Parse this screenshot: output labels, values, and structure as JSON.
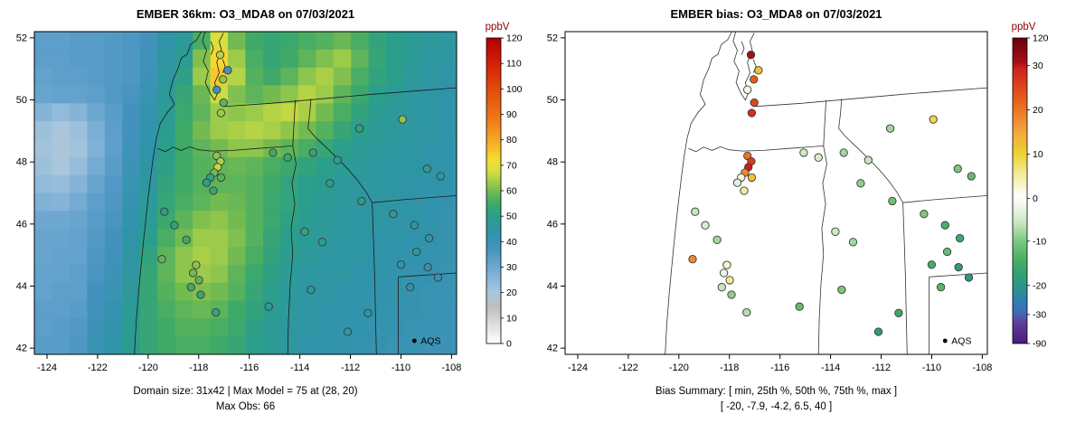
{
  "left_panel": {
    "title": "EMBER 36km: O3_MDA8 on 07/03/2021",
    "footer_line1": "Domain size: 31x42 | Max Model = 75 at (28, 20)",
    "footer_line2": "Max Obs: 66",
    "aqs_label": "AQS",
    "colorbar_title": "ppbV"
  },
  "right_panel": {
    "title": "EMBER bias: O3_MDA8 on 07/03/2021",
    "footer_line1": "Bias Summary: [ min, 25th %, 50th %, 75th %, max ]",
    "footer_line2": "[ -20, -7.9, -4.2, 6.5, 40 ]",
    "aqs_label": "AQS",
    "colorbar_title": "ppbV"
  },
  "axes": {
    "x_ticks": [
      -124,
      -122,
      -120,
      -118,
      -116,
      -114,
      -112,
      -110,
      -108
    ],
    "y_ticks": [
      42,
      44,
      46,
      48,
      50,
      52
    ]
  },
  "colors": {
    "colorbar_title": "#8b0000",
    "point_stroke": "#3a3a3a",
    "border_line": "#1a1a1a"
  },
  "chart_data": [
    {
      "type": "heatmap",
      "title": "EMBER 36km: O3_MDA8 on 07/03/2021",
      "units": "ppbV",
      "domain_size": "31x42",
      "max_model": 75,
      "max_model_at": "(28, 20)",
      "max_obs": 66,
      "colorbar_range": [
        0,
        120
      ],
      "colorbar_ticks": [
        0,
        10,
        20,
        30,
        40,
        50,
        60,
        70,
        80,
        90,
        100,
        110,
        120
      ],
      "colormap": [
        [
          0,
          "#ffffff"
        ],
        [
          8,
          "#dcdcdc"
        ],
        [
          14,
          "#bdbdbd"
        ],
        [
          20,
          "#a9c6dd"
        ],
        [
          26,
          "#86b4d8"
        ],
        [
          32,
          "#62a2cc"
        ],
        [
          38,
          "#4292bd"
        ],
        [
          44,
          "#2f94a8"
        ],
        [
          50,
          "#2b9e8c"
        ],
        [
          55,
          "#3faa67"
        ],
        [
          60,
          "#73bb51"
        ],
        [
          64,
          "#a9cf48"
        ],
        [
          68,
          "#d8df3e"
        ],
        [
          72,
          "#f4df30"
        ],
        [
          76,
          "#f6c02a"
        ],
        [
          82,
          "#f49b22"
        ],
        [
          90,
          "#ec7115"
        ],
        [
          100,
          "#e24b0d"
        ],
        [
          110,
          "#d51f06"
        ],
        [
          120,
          "#b00000"
        ]
      ],
      "grid_rows": 18,
      "grid_cols": 24,
      "values": [
        [
          33,
          33,
          34,
          34,
          35,
          36,
          38,
          44,
          47,
          56,
          68,
          60,
          55,
          53,
          54,
          56,
          57,
          59,
          56,
          52,
          50,
          48,
          47,
          46
        ],
        [
          33,
          33,
          34,
          34,
          35,
          36,
          39,
          45,
          49,
          61,
          73,
          63,
          56,
          53,
          55,
          58,
          61,
          63,
          58,
          53,
          50,
          48,
          46,
          45
        ],
        [
          32,
          33,
          33,
          34,
          35,
          36,
          40,
          46,
          51,
          63,
          75,
          65,
          57,
          55,
          58,
          62,
          64,
          61,
          56,
          52,
          50,
          47,
          45,
          44
        ],
        [
          31,
          32,
          32,
          33,
          35,
          37,
          41,
          47,
          53,
          59,
          67,
          61,
          58,
          60,
          62,
          65,
          63,
          58,
          54,
          50,
          48,
          46,
          45,
          44
        ],
        [
          26,
          24,
          26,
          30,
          34,
          38,
          42,
          48,
          54,
          58,
          63,
          62,
          63,
          65,
          66,
          64,
          60,
          56,
          52,
          49,
          47,
          46,
          45,
          44
        ],
        [
          22,
          20,
          22,
          28,
          33,
          38,
          43,
          49,
          55,
          60,
          63,
          64,
          65,
          64,
          62,
          60,
          57,
          53,
          50,
          48,
          47,
          46,
          45,
          44
        ],
        [
          21,
          19,
          21,
          27,
          33,
          39,
          44,
          50,
          55,
          58,
          60,
          62,
          62,
          60,
          58,
          56,
          53,
          50,
          48,
          47,
          46,
          45,
          44,
          43
        ],
        [
          22,
          20,
          23,
          29,
          34,
          40,
          45,
          51,
          55,
          57,
          58,
          59,
          58,
          56,
          54,
          52,
          50,
          48,
          47,
          46,
          45,
          45,
          44,
          43
        ],
        [
          24,
          23,
          26,
          31,
          35,
          41,
          46,
          52,
          55,
          57,
          58,
          58,
          57,
          55,
          52,
          50,
          49,
          47,
          46,
          46,
          45,
          44,
          44,
          43
        ],
        [
          27,
          26,
          29,
          33,
          36,
          42,
          47,
          53,
          56,
          58,
          60,
          59,
          57,
          54,
          52,
          50,
          48,
          47,
          46,
          45,
          45,
          44,
          43,
          43
        ],
        [
          30,
          30,
          31,
          34,
          37,
          43,
          48,
          54,
          58,
          61,
          62,
          60,
          57,
          54,
          51,
          49,
          47,
          46,
          45,
          45,
          44,
          44,
          43,
          42
        ],
        [
          31,
          31,
          32,
          35,
          38,
          44,
          50,
          56,
          60,
          63,
          63,
          61,
          57,
          53,
          50,
          48,
          47,
          46,
          45,
          44,
          44,
          43,
          43,
          42
        ],
        [
          31,
          32,
          32,
          36,
          39,
          45,
          52,
          58,
          62,
          64,
          63,
          60,
          56,
          52,
          49,
          47,
          46,
          45,
          45,
          44,
          43,
          43,
          42,
          42
        ],
        [
          32,
          32,
          33,
          37,
          40,
          46,
          53,
          58,
          62,
          63,
          62,
          58,
          54,
          51,
          48,
          46,
          45,
          45,
          44,
          44,
          43,
          42,
          42,
          41
        ],
        [
          32,
          33,
          33,
          38,
          41,
          47,
          53,
          57,
          60,
          61,
          60,
          57,
          53,
          50,
          47,
          46,
          45,
          44,
          44,
          43,
          43,
          42,
          41,
          41
        ],
        [
          33,
          33,
          34,
          39,
          42,
          48,
          53,
          56,
          58,
          59,
          58,
          55,
          52,
          49,
          47,
          45,
          44,
          44,
          43,
          43,
          42,
          42,
          41,
          40
        ],
        [
          33,
          34,
          35,
          40,
          43,
          49,
          53,
          55,
          57,
          57,
          56,
          54,
          51,
          48,
          46,
          45,
          44,
          43,
          43,
          42,
          42,
          41,
          41,
          40
        ],
        [
          34,
          34,
          36,
          41,
          44,
          49,
          53,
          55,
          56,
          56,
          55,
          53,
          50,
          48,
          46,
          44,
          43,
          43,
          42,
          42,
          41,
          41,
          40,
          40
        ]
      ]
    },
    {
      "type": "scatter",
      "title": "EMBER bias: O3_MDA8 on 07/03/2021",
      "units": "ppbV",
      "bias_summary": {
        "min": -20,
        "p25": -7.9,
        "p50": -4.2,
        "p75": 6.5,
        "max": 40
      },
      "colorbar_ticks": [
        {
          "v": 120,
          "f": 0.0
        },
        {
          "v": 30,
          "f": 0.09
        },
        {
          "v": 20,
          "f": 0.235
        },
        {
          "v": 10,
          "f": 0.38
        },
        {
          "v": 0,
          "f": 0.525
        },
        {
          "v": -10,
          "f": 0.665
        },
        {
          "v": -20,
          "f": 0.81
        },
        {
          "v": -30,
          "f": 0.905
        },
        {
          "v": -90,
          "f": 1.0
        }
      ],
      "colormap": [
        [
          -90,
          "#4a1a7a"
        ],
        [
          -45,
          "#5f3f9e"
        ],
        [
          -32,
          "#4f5fae"
        ],
        [
          -26,
          "#2f7cb8"
        ],
        [
          -22,
          "#2a8f96"
        ],
        [
          -18,
          "#2f9e77"
        ],
        [
          -14,
          "#4daf63"
        ],
        [
          -10,
          "#7cc87e"
        ],
        [
          -6,
          "#c6e5bc"
        ],
        [
          -2,
          "#eef6ea"
        ],
        [
          0,
          "#ffffff"
        ],
        [
          2,
          "#fbf8e0"
        ],
        [
          6,
          "#f2e88e"
        ],
        [
          10,
          "#edd330"
        ],
        [
          15,
          "#f3a83b"
        ],
        [
          22,
          "#e8601c"
        ],
        [
          30,
          "#cc1c1c"
        ],
        [
          40,
          "#a50f15"
        ],
        [
          120,
          "#67000d"
        ]
      ],
      "sites": [
        [
          0.44,
          0.072,
          65,
          40
        ],
        [
          0.447,
          0.148,
          62,
          22
        ],
        [
          0.432,
          0.18,
          40,
          2
        ],
        [
          0.448,
          0.22,
          58,
          25
        ],
        [
          0.442,
          0.252,
          63,
          28
        ],
        [
          0.458,
          0.12,
          38,
          12
        ],
        [
          0.432,
          0.385,
          62,
          20
        ],
        [
          0.441,
          0.402,
          64,
          26
        ],
        [
          0.434,
          0.42,
          66,
          30
        ],
        [
          0.426,
          0.437,
          60,
          18
        ],
        [
          0.442,
          0.452,
          57,
          12
        ],
        [
          0.417,
          0.452,
          52,
          2
        ],
        [
          0.408,
          0.468,
          50,
          -3
        ],
        [
          0.424,
          0.493,
          53,
          5
        ],
        [
          0.565,
          0.375,
          55,
          -5
        ],
        [
          0.6,
          0.39,
          54,
          -4
        ],
        [
          0.66,
          0.375,
          52,
          -8
        ],
        [
          0.718,
          0.398,
          50,
          -6
        ],
        [
          0.872,
          0.272,
          62,
          9
        ],
        [
          0.77,
          0.3,
          52,
          -8
        ],
        [
          0.93,
          0.425,
          48,
          -10
        ],
        [
          0.962,
          0.448,
          46,
          -12
        ],
        [
          0.7,
          0.47,
          50,
          -9
        ],
        [
          0.775,
          0.525,
          49,
          -11
        ],
        [
          0.85,
          0.565,
          47,
          -10
        ],
        [
          0.9,
          0.6,
          45,
          -14
        ],
        [
          0.935,
          0.64,
          44,
          -16
        ],
        [
          0.905,
          0.682,
          46,
          -12
        ],
        [
          0.868,
          0.722,
          44,
          -15
        ],
        [
          0.932,
          0.73,
          43,
          -18
        ],
        [
          0.956,
          0.762,
          42,
          -20
        ],
        [
          0.89,
          0.792,
          45,
          -13
        ],
        [
          0.308,
          0.558,
          50,
          -6
        ],
        [
          0.332,
          0.6,
          52,
          -4
        ],
        [
          0.36,
          0.645,
          54,
          -8
        ],
        [
          0.302,
          0.705,
          58,
          18
        ],
        [
          0.383,
          0.723,
          62,
          3
        ],
        [
          0.376,
          0.748,
          60,
          -2
        ],
        [
          0.39,
          0.77,
          58,
          6
        ],
        [
          0.371,
          0.792,
          55,
          -6
        ],
        [
          0.394,
          0.815,
          53,
          -9
        ],
        [
          0.43,
          0.87,
          52,
          -7
        ],
        [
          0.555,
          0.852,
          48,
          -12
        ],
        [
          0.64,
          0.62,
          52,
          -5
        ],
        [
          0.682,
          0.652,
          50,
          -8
        ],
        [
          0.655,
          0.8,
          47,
          -10
        ],
        [
          0.79,
          0.872,
          44,
          -16
        ],
        [
          0.742,
          0.93,
          43,
          -18
        ]
      ]
    }
  ]
}
